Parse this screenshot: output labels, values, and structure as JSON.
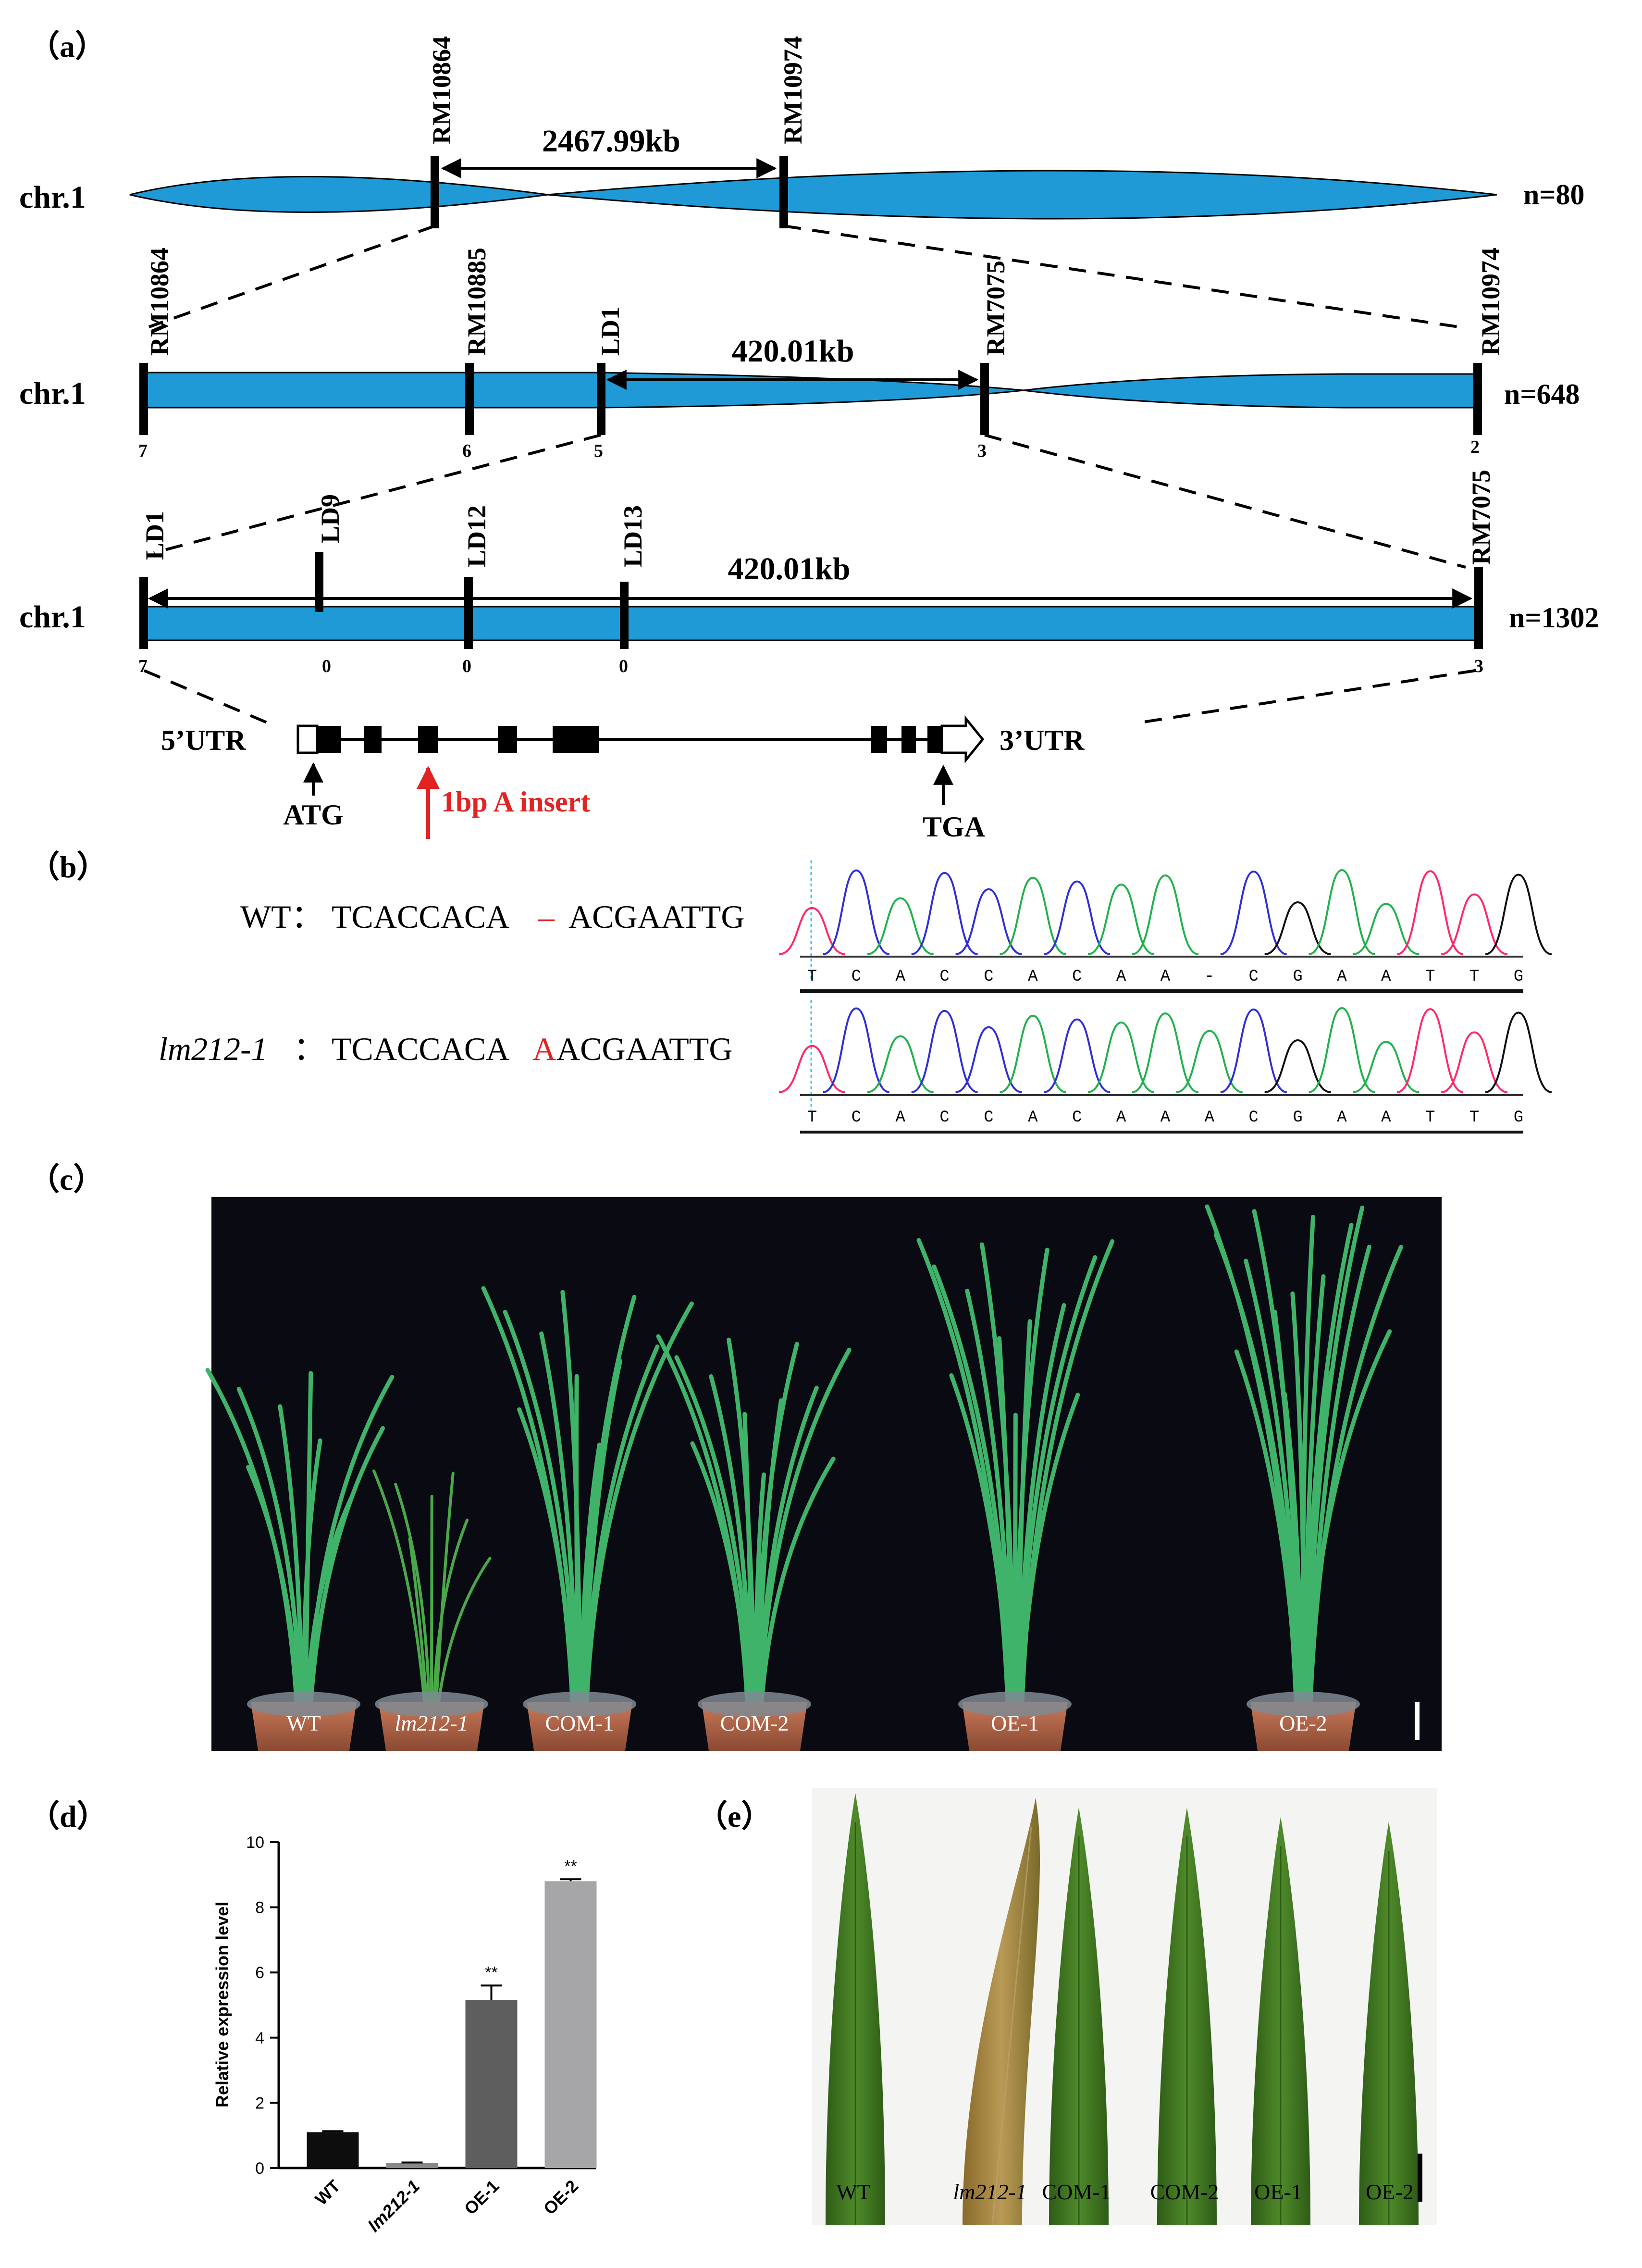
{
  "panels": {
    "a": "（a）",
    "b": "（b）",
    "c": "（c）",
    "d": "（d）",
    "e": "（e）"
  },
  "map": {
    "chr": "chr.1",
    "row1": {
      "markers": [
        "RM10864",
        "RM10974"
      ],
      "distance": "2467.99kb",
      "n": "n=80"
    },
    "row2": {
      "markers": [
        "RM10864",
        "RM10885",
        "LD1",
        "RM7075",
        "RM10974"
      ],
      "counts": [
        "7",
        "6",
        "5",
        "3",
        "2"
      ],
      "distance": "420.01kb",
      "n": "n=648"
    },
    "row3": {
      "markers": [
        "LD1",
        "LD9",
        "LD12",
        "LD13",
        "RM7075"
      ],
      "counts": [
        "7",
        "0",
        "0",
        "0",
        "3"
      ],
      "distance": "420.01kb",
      "n": "n=1302"
    },
    "gene": {
      "utr5": "5’UTR",
      "utr3": "3’UTR",
      "start": "ATG",
      "stop": "TGA",
      "mutation": "1bp A insert"
    }
  },
  "sequence": {
    "wt_label": "WT：",
    "wt_left": "TCACCACA",
    "wt_gap": "–",
    "wt_right": "ACGAATTG",
    "mut_label": "lm212-1",
    "mut_sep": "：",
    "mut_left": "TCACCACA",
    "mut_insert": "A",
    "mut_right": "ACGAATTG",
    "wt_bases": [
      "T",
      "C",
      "A",
      "C",
      "C",
      "A",
      "C",
      "A",
      "A",
      "-",
      "C",
      "G",
      "A",
      "A",
      "T",
      "T",
      "G"
    ],
    "mut_bases": [
      "T",
      "C",
      "A",
      "C",
      "C",
      "A",
      "C",
      "A",
      "A",
      "A",
      "C",
      "G",
      "A",
      "A",
      "T",
      "T",
      "G"
    ]
  },
  "plants": {
    "labels": [
      "WT",
      "lm212-1",
      "COM-1",
      "COM-2",
      "OE-1",
      "OE-2"
    ]
  },
  "chart_data": {
    "type": "bar",
    "categories": [
      "WT",
      "lm212-1",
      "OE-1",
      "OE-2"
    ],
    "values": [
      1.1,
      0.15,
      5.15,
      8.8
    ],
    "errors": [
      0.03,
      0.02,
      0.45,
      0.06
    ],
    "significance": [
      "",
      "",
      "**",
      "**"
    ],
    "colors": [
      "#0d0d0d",
      "#888888",
      "#5e5e5e",
      "#a6a6a8"
    ],
    "ylabel": "Relative expression level",
    "xlabel": "",
    "ylim": [
      0,
      10
    ],
    "yticks": [
      0,
      2,
      4,
      6,
      8,
      10
    ],
    "xtick_labels": [
      "WT",
      "lm212-1",
      "OE-1",
      "OE-2"
    ]
  },
  "leaves": {
    "labels": [
      "WT",
      "lm212-1",
      "COM-1",
      "COM-2",
      "OE-1",
      "OE-2"
    ]
  },
  "colors": {
    "chromosome": "#1f9ad6",
    "mutation": "#e32222",
    "photo_bg": "#0a0a12",
    "leaf_bg": "#f4f4f2",
    "leaf_green": "#3a6e1e"
  }
}
